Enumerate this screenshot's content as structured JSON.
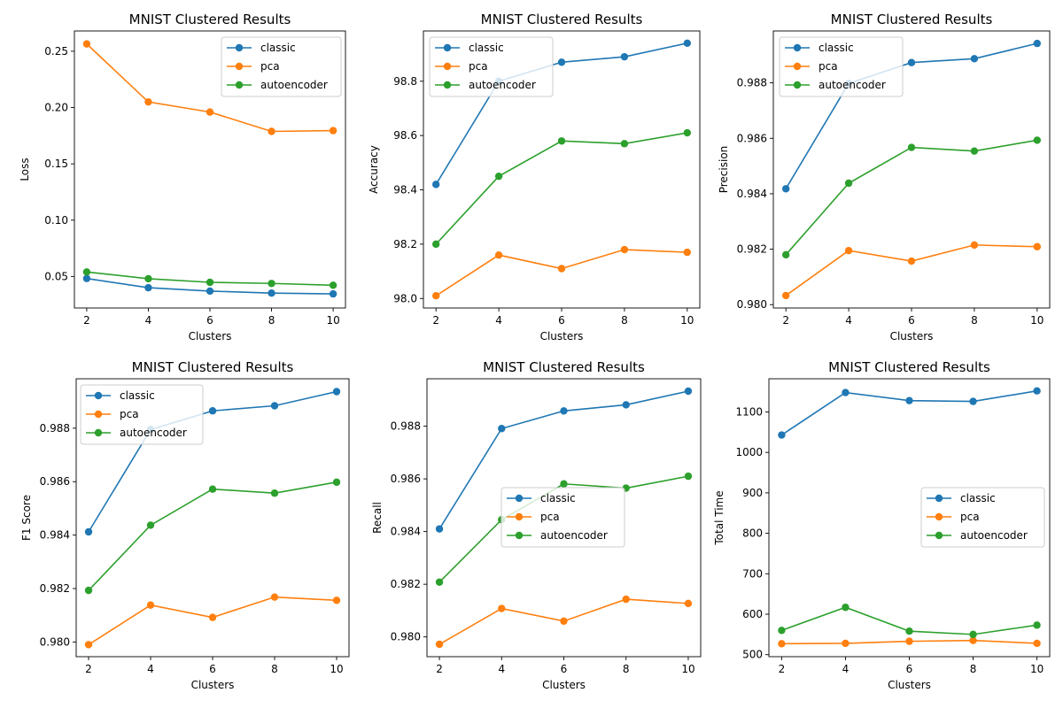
{
  "colors": {
    "classic": "#1f77b4",
    "pca": "#ff7f0e",
    "autoencoder": "#2ca02c"
  },
  "chart_data": [
    {
      "type": "line",
      "title": "MNIST Clustered Results",
      "xlabel": "Clusters",
      "ylabel": "Loss",
      "x": [
        2,
        4,
        6,
        8,
        10
      ],
      "xticks": [
        "2",
        "4",
        "6",
        "8",
        "10"
      ],
      "ylim": [
        0.022,
        0.268
      ],
      "yticks": [
        0.05,
        0.1,
        0.15,
        0.2,
        0.25
      ],
      "ytick_labels": [
        "0.05",
        "0.10",
        "0.15",
        "0.20",
        "0.25"
      ],
      "legend": "upper-right",
      "series": [
        {
          "name": "classic",
          "values": [
            0.0482,
            0.04,
            0.037,
            0.0352,
            0.0345
          ]
        },
        {
          "name": "pca",
          "values": [
            0.2565,
            0.205,
            0.196,
            0.1788,
            0.1795
          ]
        },
        {
          "name": "autoencoder",
          "values": [
            0.054,
            0.048,
            0.0448,
            0.0438,
            0.0422
          ]
        }
      ]
    },
    {
      "type": "line",
      "title": "MNIST Clustered Results",
      "xlabel": "Clusters",
      "ylabel": "Accuracy",
      "x": [
        2,
        4,
        6,
        8,
        10
      ],
      "xticks": [
        "2",
        "4",
        "6",
        "8",
        "10"
      ],
      "ylim": [
        97.965,
        98.985
      ],
      "yticks": [
        98.0,
        98.2,
        98.4,
        98.6,
        98.8
      ],
      "ytick_labels": [
        "98.0",
        "98.2",
        "98.4",
        "98.6",
        "98.8"
      ],
      "legend": "upper-left",
      "series": [
        {
          "name": "classic",
          "values": [
            98.42,
            98.8,
            98.87,
            98.89,
            98.94
          ]
        },
        {
          "name": "pca",
          "values": [
            98.01,
            98.16,
            98.11,
            98.18,
            98.17
          ]
        },
        {
          "name": "autoencoder",
          "values": [
            98.2,
            98.45,
            98.58,
            98.57,
            98.61
          ]
        }
      ]
    },
    {
      "type": "line",
      "title": "MNIST Clustered Results",
      "xlabel": "Clusters",
      "ylabel": "Precision",
      "x": [
        2,
        4,
        6,
        8,
        10
      ],
      "xticks": [
        "2",
        "4",
        "6",
        "8",
        "10"
      ],
      "ylim": [
        0.97988,
        0.98987
      ],
      "yticks": [
        0.98,
        0.982,
        0.984,
        0.986,
        0.988
      ],
      "ytick_labels": [
        "0.980",
        "0.982",
        "0.984",
        "0.986",
        "0.988"
      ],
      "legend": "upper-left",
      "series": [
        {
          "name": "classic",
          "values": [
            0.98418,
            0.98798,
            0.98873,
            0.98887,
            0.98942
          ]
        },
        {
          "name": "pca",
          "values": [
            0.98033,
            0.98195,
            0.98157,
            0.98215,
            0.98209
          ]
        },
        {
          "name": "autoencoder",
          "values": [
            0.9818,
            0.98438,
            0.98567,
            0.98554,
            0.98593
          ]
        }
      ]
    },
    {
      "type": "line",
      "title": "MNIST Clustered Results",
      "xlabel": "Clusters",
      "ylabel": "F1 Score",
      "x": [
        2,
        4,
        6,
        8,
        10
      ],
      "xticks": [
        "2",
        "4",
        "6",
        "8",
        "10"
      ],
      "ylim": [
        0.97945,
        0.98985
      ],
      "yticks": [
        0.98,
        0.982,
        0.984,
        0.986,
        0.988
      ],
      "ytick_labels": [
        "0.980",
        "0.982",
        "0.984",
        "0.986",
        "0.988"
      ],
      "legend": "upper-left",
      "series": [
        {
          "name": "classic",
          "values": [
            0.98412,
            0.98795,
            0.98865,
            0.98884,
            0.98937
          ]
        },
        {
          "name": "pca",
          "values": [
            0.9799,
            0.98138,
            0.98092,
            0.98168,
            0.98156
          ]
        },
        {
          "name": "autoencoder",
          "values": [
            0.98193,
            0.98437,
            0.98572,
            0.98557,
            0.98598
          ]
        }
      ]
    },
    {
      "type": "line",
      "title": "MNIST Clustered Results",
      "xlabel": "Clusters",
      "ylabel": "Recall",
      "x": [
        2,
        4,
        6,
        8,
        10
      ],
      "xticks": [
        "2",
        "4",
        "6",
        "8",
        "10"
      ],
      "ylim": [
        0.97925,
        0.9898
      ],
      "yticks": [
        0.98,
        0.982,
        0.984,
        0.986,
        0.988
      ],
      "ytick_labels": [
        "0.980",
        "0.982",
        "0.984",
        "0.986",
        "0.988"
      ],
      "legend": "center-right",
      "series": [
        {
          "name": "classic",
          "values": [
            0.9841,
            0.98791,
            0.98858,
            0.98881,
            0.98933
          ]
        },
        {
          "name": "pca",
          "values": [
            0.97972,
            0.98108,
            0.9806,
            0.98143,
            0.98127
          ]
        },
        {
          "name": "autoencoder",
          "values": [
            0.98208,
            0.98445,
            0.98581,
            0.98565,
            0.9861
          ]
        }
      ]
    },
    {
      "type": "line",
      "title": "MNIST Clustered Results",
      "xlabel": "Clusters",
      "ylabel": "Total Time",
      "x": [
        2,
        4,
        6,
        8,
        10
      ],
      "xticks": [
        "2",
        "4",
        "6",
        "8",
        "10"
      ],
      "ylim": [
        495,
        1182
      ],
      "yticks": [
        500,
        600,
        700,
        800,
        900,
        1000,
        1100
      ],
      "ytick_labels": [
        "500",
        "600",
        "700",
        "800",
        "900",
        "1000",
        "1100"
      ],
      "legend": "center-right",
      "series": [
        {
          "name": "classic",
          "values": [
            1043,
            1148,
            1128,
            1126,
            1152
          ]
        },
        {
          "name": "pca",
          "values": [
            527,
            528,
            533,
            535,
            528
          ]
        },
        {
          "name": "autoencoder",
          "values": [
            560,
            617,
            558,
            550,
            573
          ]
        }
      ]
    }
  ]
}
